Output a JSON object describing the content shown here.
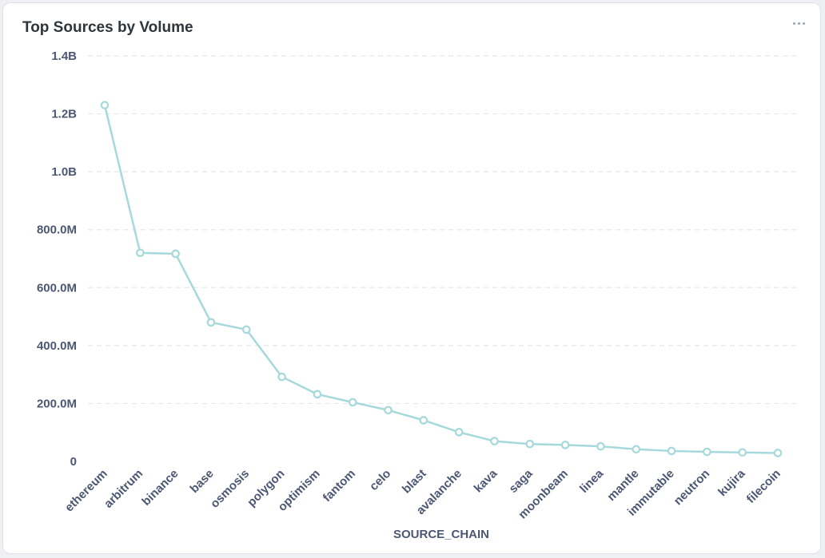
{
  "card": {
    "title": "Top Sources by Volume",
    "menu_icon": "ellipsis-icon"
  },
  "colors": {
    "line": "#a6d9db",
    "grid": "#e4e7eb",
    "text": "#4c5773",
    "title": "#2e353b"
  },
  "chart_data": {
    "type": "line",
    "title": "Top Sources by Volume",
    "xlabel": "SOURCE_CHAIN",
    "ylabel": "",
    "ylim": [
      0,
      1400000000
    ],
    "yticks": [
      {
        "value": 0,
        "label": "0"
      },
      {
        "value": 200000000,
        "label": "200.0M"
      },
      {
        "value": 400000000,
        "label": "400.0M"
      },
      {
        "value": 600000000,
        "label": "600.0M"
      },
      {
        "value": 800000000,
        "label": "800.0M"
      },
      {
        "value": 1000000000,
        "label": "1.0B"
      },
      {
        "value": 1200000000,
        "label": "1.2B"
      },
      {
        "value": 1400000000,
        "label": "1.4B"
      }
    ],
    "grid": true,
    "legend": "none",
    "categories": [
      "ethereum",
      "arbitrum",
      "binance",
      "base",
      "osmosis",
      "polygon",
      "optimism",
      "fantom",
      "celo",
      "blast",
      "avalanche",
      "kava",
      "saga",
      "moonbeam",
      "linea",
      "mantle",
      "immutable",
      "neutron",
      "kujira",
      "filecoin"
    ],
    "series": [
      {
        "values": [
          1230000000,
          720000000,
          717000000,
          480000000,
          455000000,
          292000000,
          232000000,
          204000000,
          177000000,
          142000000,
          101000000,
          70000000,
          60000000,
          57000000,
          52000000,
          42000000,
          36000000,
          33000000,
          31000000,
          29000000
        ]
      }
    ]
  }
}
